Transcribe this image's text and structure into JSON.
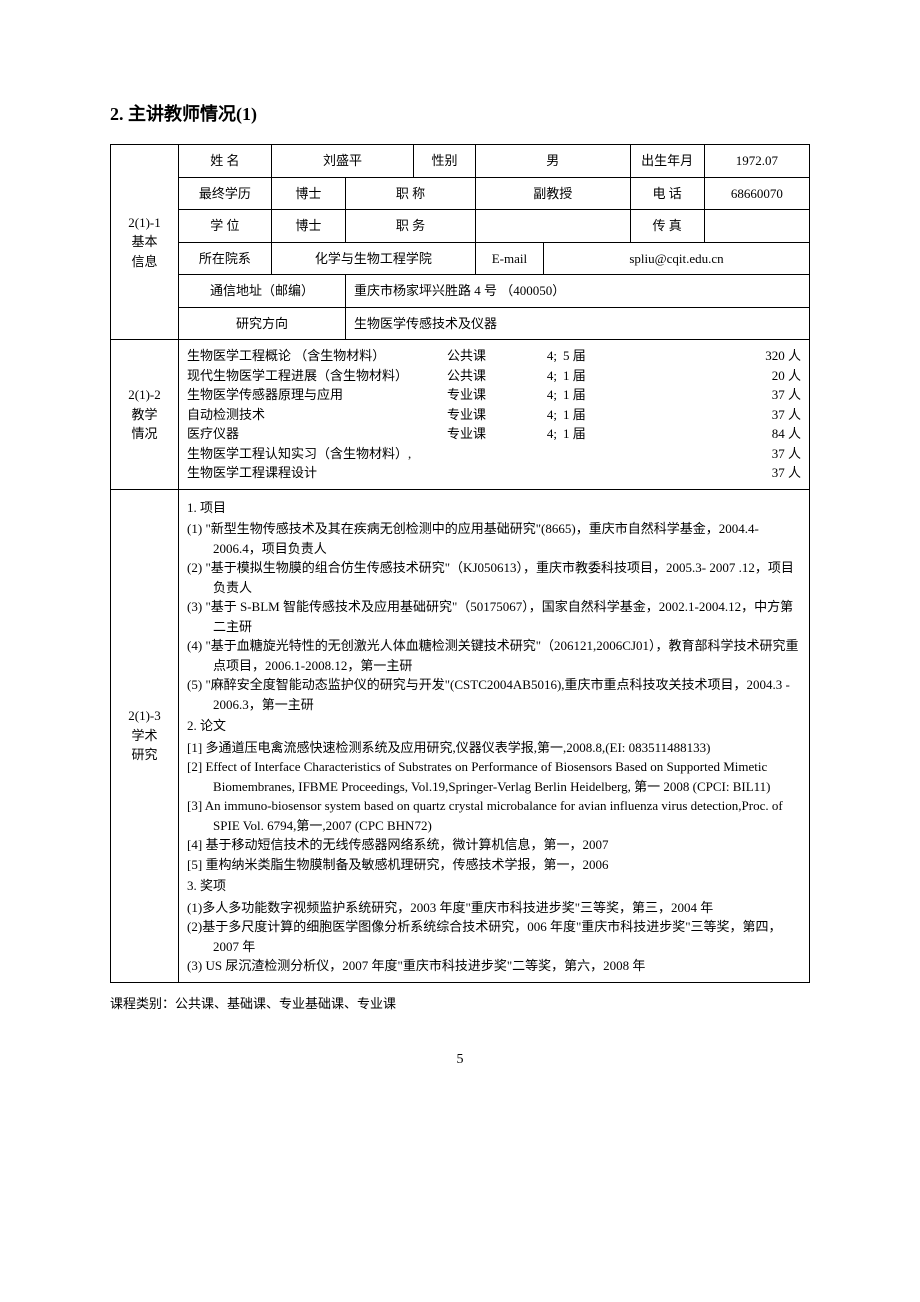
{
  "heading": "2.  主讲教师情况(1)",
  "side": {
    "s1": "2(1)-1\n基本\n信息",
    "s2": "2(1)-2\n教学\n情况",
    "s3": "2(1)-3\n学术\n研究"
  },
  "basic": {
    "name_lbl": "姓 名",
    "name": "刘盛平",
    "gender_lbl": "性别",
    "gender": "男",
    "birth_lbl": "出生年月",
    "birth": "1972.07",
    "edu_lbl": "最终学历",
    "edu": "博士",
    "title_lbl": "职   称",
    "title": "副教授",
    "phone_lbl": "电 话",
    "phone": "68660070",
    "degree_lbl": "学   位",
    "degree": "博士",
    "post_lbl": "职   务",
    "post": "",
    "fax_lbl": "传 真",
    "fax": "",
    "dept_lbl": "所在院系",
    "dept": "化学与生物工程学院",
    "email_lbl": "E-mail",
    "email": "spliu@cqit.edu.cn",
    "addr_lbl": "通信地址（邮编）",
    "addr": "重庆市杨家坪兴胜路 4 号  （400050）",
    "research_lbl": "研究方向",
    "research": "生物医学传感技术及仪器"
  },
  "teaching": [
    {
      "course": "生物医学工程概论 （含生物材料）",
      "type": "公共课",
      "credit": "4;",
      "term": "5 届",
      "count": "320 人"
    },
    {
      "course": "现代生物医学工程进展（含生物材料）",
      "type": "公共课",
      "credit": "4;",
      "term": "1 届",
      "count": "20 人"
    },
    {
      "course": "生物医学传感器原理与应用",
      "type": "专业课",
      "credit": "4;",
      "term": "1 届",
      "count": "37 人"
    },
    {
      "course": "自动检测技术",
      "type": "专业课",
      "credit": "4;",
      "term": "1 届",
      "count": "37 人"
    },
    {
      "course": "医疗仪器",
      "type": "专业课",
      "credit": "4;",
      "term": "1 届",
      "count": "84 人"
    },
    {
      "course": "生物医学工程认知实习（含生物材料）,",
      "type": "",
      "credit": "",
      "term": "",
      "count": "37 人"
    },
    {
      "course": "生物医学工程课程设计",
      "type": "",
      "credit": "",
      "term": "",
      "count": "37 人"
    }
  ],
  "research": {
    "projects_title": "1. 项目",
    "projects": [
      "(1) \"新型生物传感技术及其在疾病无创检测中的应用基础研究\"(8665)，重庆市自然科学基金，2004.4-2006.4，项目负责人",
      "(2) \"基于模拟生物膜的组合仿生传感技术研究\"（KJ050613），重庆市教委科技项目，2005.3- 2007 .12，项目负责人",
      "(3)  \"基于 S-BLM 智能传感技术及应用基础研究\"（50175067），国家自然科学基金，2002.1-2004.12，中方第二主研",
      "(4) \"基于血糖旋光特性的无创激光人体血糖检测关键技术研究\"（206121,2006CJ01），教育部科学技术研究重点项目，2006.1-2008.12，第一主研",
      "(5) \"麻醉安全度智能动态监护仪的研究与开发\"(CSTC2004AB5016),重庆市重点科技攻关技术项目，2004.3 - 2006.3，第一主研"
    ],
    "papers_title": "2. 论文",
    "papers": [
      "[1] 多通道压电禽流感快速检测系统及应用研究,仪器仪表学报,第一,2008.8,(EI: 083511488133)",
      "[2] Effect of Interface Characteristics of Substrates on Performance of Biosensors  Based  on  Supported  Mimetic  Biomembranes,    IFBME Proceedings, Vol.19,Springer-Verlag Berlin Heidelberg, 第一 2008 (CPCI: BIL11)",
      "[3] An immuno-biosensor system based on quartz crystal microbalance for avian influenza virus detection,Proc. of SPIE Vol. 6794,第一,2007 (CPC BHN72)",
      "[4] 基于移动短信技术的无线传感器网络系统，微计算机信息，第一，2007",
      "[5] 重构纳米类脂生物膜制备及敏感机理研究，传感技术学报，第一，2006"
    ],
    "awards_title": "3. 奖项",
    "awards": [
      "(1)多人多功能数字视频监护系统研究，2003 年度\"重庆市科技进步奖\"三等奖，第三，2004 年",
      "(2)基于多尺度计算的细胞医学图像分析系统综合技术研究，006 年度\"重庆市科技进步奖\"三等奖，第四，2007 年",
      "(3) US 尿沉渣检测分析仪，2007 年度\"重庆市科技进步奖\"二等奖，第六，2008 年"
    ]
  },
  "footnote": "课程类别：公共课、基础课、专业基础课、专业课",
  "pageno": "5"
}
